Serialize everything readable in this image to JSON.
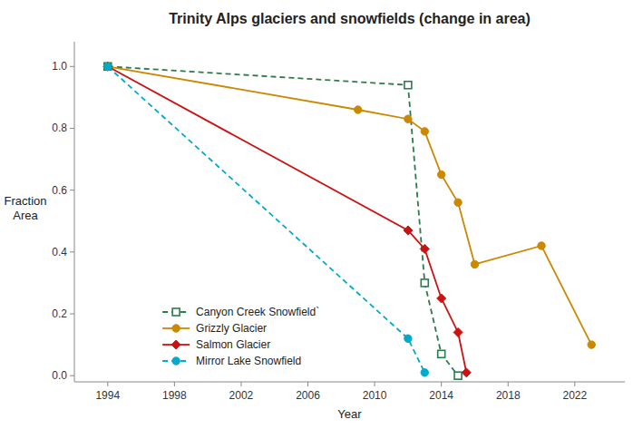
{
  "chart_data": {
    "type": "line",
    "title": "Trinity Alps glaciers and snowfields (change in area)",
    "x_label": "Year",
    "y_label": "Fraction\nArea",
    "xlim": [
      1992,
      2025
    ],
    "ylim": [
      -0.02,
      1.08
    ],
    "xticks": [
      1994,
      1998,
      2002,
      2006,
      2010,
      2014,
      2018,
      2022
    ],
    "yticks": [
      {
        "value": 0.0,
        "label": "0.0"
      },
      0.2,
      0.4,
      0.6,
      0.8,
      {
        "value": 1.0,
        "label": "1.0"
      }
    ],
    "grid": false,
    "legend": "lower left",
    "series": [
      {
        "name": "Canyon Creek Snowfield`",
        "color": "#2d7a4f",
        "line_style": "dashed",
        "marker": "square",
        "x": [
          1994,
          2012,
          2013,
          2014,
          2015
        ],
        "values": [
          1.0,
          0.94,
          0.3,
          0.07,
          0.0
        ]
      },
      {
        "name": "Grizzly Glacier",
        "color": "#cc8800",
        "line_style": "solid",
        "marker": "circle",
        "x": [
          1994,
          2009,
          2012,
          2013,
          2014,
          2015,
          2016,
          2020,
          2023
        ],
        "values": [
          1.0,
          0.86,
          0.83,
          0.79,
          0.65,
          0.56,
          0.36,
          0.42,
          0.1
        ]
      },
      {
        "name": "Salmon Glacier",
        "color": "#cc1111",
        "line_style": "solid",
        "marker": "diamond",
        "x": [
          1994,
          2012,
          2013,
          2014,
          2015,
          2015.5
        ],
        "values": [
          1.0,
          0.47,
          0.41,
          0.25,
          0.14,
          0.01
        ]
      },
      {
        "name": "Mirror Lake Snowfield",
        "color": "#00aacc",
        "line_style": "dashed",
        "marker": "circle",
        "x": [
          1994,
          2012,
          2013
        ],
        "values": [
          1.0,
          0.12,
          0.01
        ]
      }
    ]
  }
}
